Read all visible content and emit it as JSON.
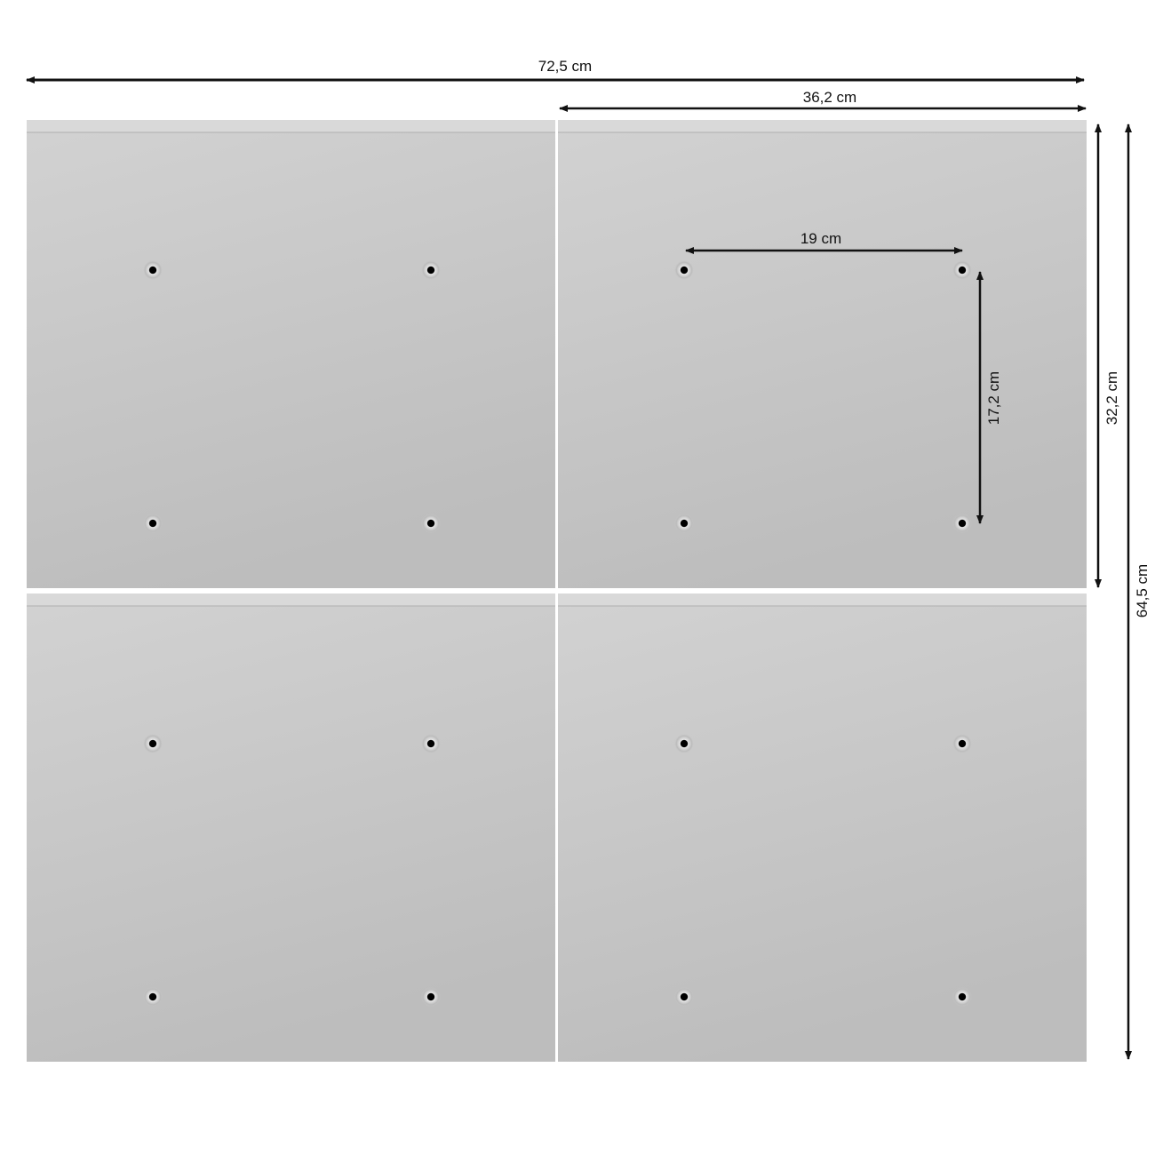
{
  "dimensions": {
    "total_width": "72,5 cm",
    "panel_width": "36,2 cm",
    "panel_height": "32,2 cm",
    "total_height": "64,5 cm",
    "hole_spacing_horizontal": "19 cm",
    "hole_spacing_vertical": "17,2 cm"
  },
  "colors": {
    "panel": "#c6c6c6",
    "panel_top_edge": "#d9d9d9",
    "arrow": "#111111",
    "hole": "#000000"
  },
  "panels": [
    "top-left",
    "top-right",
    "bottom-left",
    "bottom-right"
  ]
}
